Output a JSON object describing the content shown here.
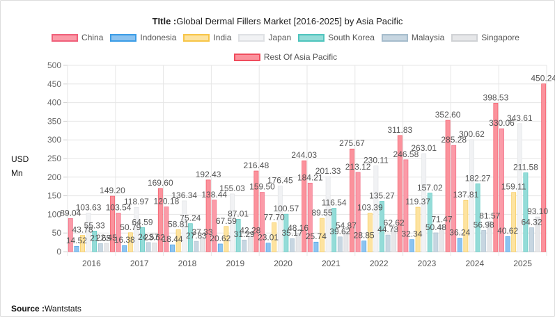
{
  "title_prefix": "TItle :",
  "title_text": "Global Dermal Fillers Market [2016-2025] by Asia Pacific",
  "ylabel_line1": "USD",
  "ylabel_line2": "Mn",
  "source_label": "Source :",
  "source_text": "Wantstats",
  "chart_data": {
    "type": "bar",
    "title": "TItle :Global Dermal Fillers Market [2016-2025] by Asia Pacific",
    "ylabel": "USD Mn",
    "xlabel": "",
    "ylim": [
      0,
      500
    ],
    "yticks": [
      0,
      50,
      100,
      150,
      200,
      250,
      300,
      350,
      400,
      450,
      500
    ],
    "grid": true,
    "legend_position": "top",
    "categories": [
      "2016",
      "2017",
      "2018",
      "2019",
      "2020",
      "2021",
      "2022",
      "2023",
      "2024",
      "2025"
    ],
    "series": [
      {
        "name": "China",
        "fill": "#fb9ba8",
        "stroke": "#f0607a",
        "values": [
          89.04,
          103.54,
          120.18,
          138.44,
          159.5,
          184.21,
          213.12,
          246.58,
          285.28,
          330.06
        ]
      },
      {
        "name": "Indonesia",
        "fill": "#8cc3f0",
        "stroke": "#3b9ce6",
        "values": [
          14.52,
          16.38,
          18.44,
          20.62,
          23.01,
          25.74,
          28.85,
          32.34,
          36.24,
          40.62
        ]
      },
      {
        "name": "India",
        "fill": "#fde3a0",
        "stroke": "#f7c548",
        "values": [
          43.78,
          50.79,
          58.81,
          67.59,
          77.7,
          89.55,
          103.39,
          119.37,
          137.81,
          159.11
        ]
      },
      {
        "name": "Japan",
        "fill": "#f1f2f4",
        "stroke": "#dfe1e4",
        "values": [
          103.63,
          118.97,
          136.34,
          155.03,
          176.45,
          201.33,
          230.11,
          263.01,
          300.62,
          343.61
        ]
      },
      {
        "name": "South Korea",
        "fill": "#94dcd8",
        "stroke": "#4fc4bd",
        "values": [
          55.33,
          64.59,
          75.24,
          87.01,
          100.57,
          116.54,
          135.27,
          157.02,
          182.27,
          211.58
        ]
      },
      {
        "name": "Malaysia",
        "fill": "#c7d6e1",
        "stroke": "#a6bccc",
        "values": [
          21.65,
          24.57,
          27.83,
          31.29,
          35.17,
          39.62,
          44.73,
          50.48,
          56.98,
          64.32
        ]
      },
      {
        "name": "Singapore",
        "fill": "#e6e7e9",
        "stroke": "#d0d2d5",
        "values": [
          22.45,
          23.62,
          37.33,
          42.28,
          48.16,
          54.87,
          62.62,
          71.47,
          81.57,
          93.1
        ]
      },
      {
        "name": "Rest Of Asia Pacific",
        "fill": "#fb929c",
        "stroke": "#f04c5c",
        "values": [
          149.2,
          169.6,
          192.43,
          216.48,
          244.03,
          275.67,
          311.83,
          352.6,
          398.53,
          450.24
        ]
      }
    ]
  }
}
